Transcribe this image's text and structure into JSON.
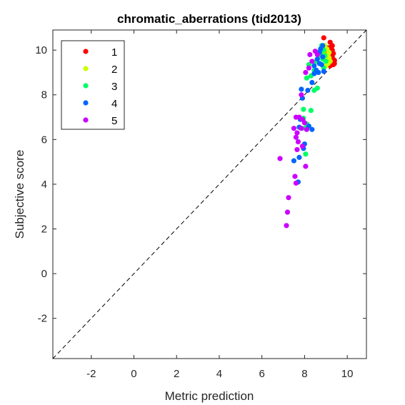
{
  "chart_data": {
    "type": "scatter",
    "title": "chromatic_aberrations (tid2013)",
    "xlabel": "Metric prediction",
    "ylabel": "Subjective score",
    "xlim": [
      -3.8,
      10.9
    ],
    "ylim": [
      -3.8,
      10.9
    ],
    "xticks": [
      -2,
      0,
      2,
      4,
      6,
      8,
      10
    ],
    "yticks": [
      -2,
      0,
      2,
      4,
      6,
      8,
      10
    ],
    "grid": false,
    "legend_position": "top-left",
    "reference_line": {
      "style": "dashed",
      "color": "#000000",
      "from": [
        -3.8,
        -3.8
      ],
      "to": [
        10.9,
        10.9
      ]
    },
    "series": [
      {
        "name": "1",
        "color": "#ff0000",
        "points": [
          [
            8.9,
            10.55
          ],
          [
            9.2,
            10.35
          ],
          [
            9.25,
            10.15
          ],
          [
            9.1,
            10.1
          ],
          [
            9.3,
            10.0
          ],
          [
            9.35,
            9.85
          ],
          [
            9.2,
            9.9
          ],
          [
            9.05,
            9.85
          ],
          [
            9.3,
            9.7
          ],
          [
            9.15,
            9.6
          ],
          [
            9.4,
            9.55
          ],
          [
            9.25,
            9.45
          ],
          [
            9.35,
            9.35
          ],
          [
            9.1,
            9.5
          ],
          [
            9.2,
            9.3
          ],
          [
            9.4,
            9.4
          ],
          [
            9.0,
            10.0
          ],
          [
            9.3,
            10.2
          ]
        ]
      },
      {
        "name": "2",
        "color": "#ccff00",
        "points": [
          [
            8.95,
            10.2
          ],
          [
            9.05,
            10.05
          ],
          [
            8.9,
            9.95
          ],
          [
            9.1,
            9.8
          ],
          [
            9.0,
            9.7
          ],
          [
            9.15,
            9.65
          ],
          [
            9.05,
            9.5
          ],
          [
            8.95,
            9.55
          ],
          [
            9.2,
            9.5
          ],
          [
            9.1,
            9.4
          ],
          [
            8.85,
            9.85
          ],
          [
            9.0,
            9.3
          ],
          [
            9.15,
            9.9
          ]
        ]
      },
      {
        "name": "3",
        "color": "#00ff66",
        "points": [
          [
            8.8,
            10.2
          ],
          [
            8.9,
            10.0
          ],
          [
            8.75,
            9.9
          ],
          [
            8.95,
            9.75
          ],
          [
            8.85,
            9.6
          ],
          [
            9.0,
            9.5
          ],
          [
            8.65,
            9.75
          ],
          [
            8.55,
            9.5
          ],
          [
            8.2,
            9.35
          ],
          [
            8.9,
            9.2
          ],
          [
            8.45,
            9.1
          ],
          [
            8.3,
            8.85
          ],
          [
            8.1,
            8.75
          ],
          [
            8.6,
            8.3
          ],
          [
            8.45,
            8.2
          ],
          [
            8.3,
            7.3
          ],
          [
            7.95,
            7.35
          ],
          [
            7.95,
            6.95
          ],
          [
            8.1,
            6.7
          ],
          [
            8.0,
            6.5
          ],
          [
            8.05,
            5.35
          ]
        ]
      },
      {
        "name": "4",
        "color": "#0066ff",
        "points": [
          [
            8.85,
            10.2
          ],
          [
            8.75,
            10.05
          ],
          [
            8.7,
            9.9
          ],
          [
            8.85,
            9.7
          ],
          [
            8.6,
            9.6
          ],
          [
            8.7,
            9.4
          ],
          [
            8.45,
            9.3
          ],
          [
            8.8,
            9.35
          ],
          [
            8.55,
            9.1
          ],
          [
            8.9,
            9.05
          ],
          [
            8.45,
            8.95
          ],
          [
            8.65,
            9.0
          ],
          [
            8.35,
            8.55
          ],
          [
            7.85,
            8.25
          ],
          [
            8.15,
            8.2
          ],
          [
            7.9,
            7.85
          ],
          [
            8.2,
            6.6
          ],
          [
            8.35,
            6.45
          ],
          [
            7.8,
            6.9
          ],
          [
            7.75,
            6.55
          ],
          [
            8.0,
            5.8
          ],
          [
            7.95,
            5.6
          ],
          [
            7.75,
            5.2
          ],
          [
            7.5,
            5.05
          ],
          [
            7.7,
            4.1
          ]
        ]
      },
      {
        "name": "5",
        "color": "#cc00ff",
        "points": [
          [
            8.5,
            9.95
          ],
          [
            8.6,
            9.8
          ],
          [
            8.25,
            9.8
          ],
          [
            8.35,
            9.5
          ],
          [
            8.2,
            9.2
          ],
          [
            8.05,
            9.0
          ],
          [
            7.85,
            8.0
          ],
          [
            7.6,
            7.0
          ],
          [
            7.75,
            7.0
          ],
          [
            7.9,
            6.9
          ],
          [
            8.0,
            6.75
          ],
          [
            7.85,
            6.5
          ],
          [
            7.5,
            6.5
          ],
          [
            8.1,
            6.45
          ],
          [
            7.65,
            6.3
          ],
          [
            7.6,
            6.1
          ],
          [
            7.7,
            5.9
          ],
          [
            7.9,
            5.7
          ],
          [
            7.65,
            5.55
          ],
          [
            6.85,
            5.15
          ],
          [
            8.05,
            4.8
          ],
          [
            7.55,
            4.35
          ],
          [
            7.6,
            4.05
          ],
          [
            7.25,
            3.4
          ],
          [
            7.2,
            2.75
          ],
          [
            7.15,
            2.15
          ]
        ]
      }
    ]
  }
}
